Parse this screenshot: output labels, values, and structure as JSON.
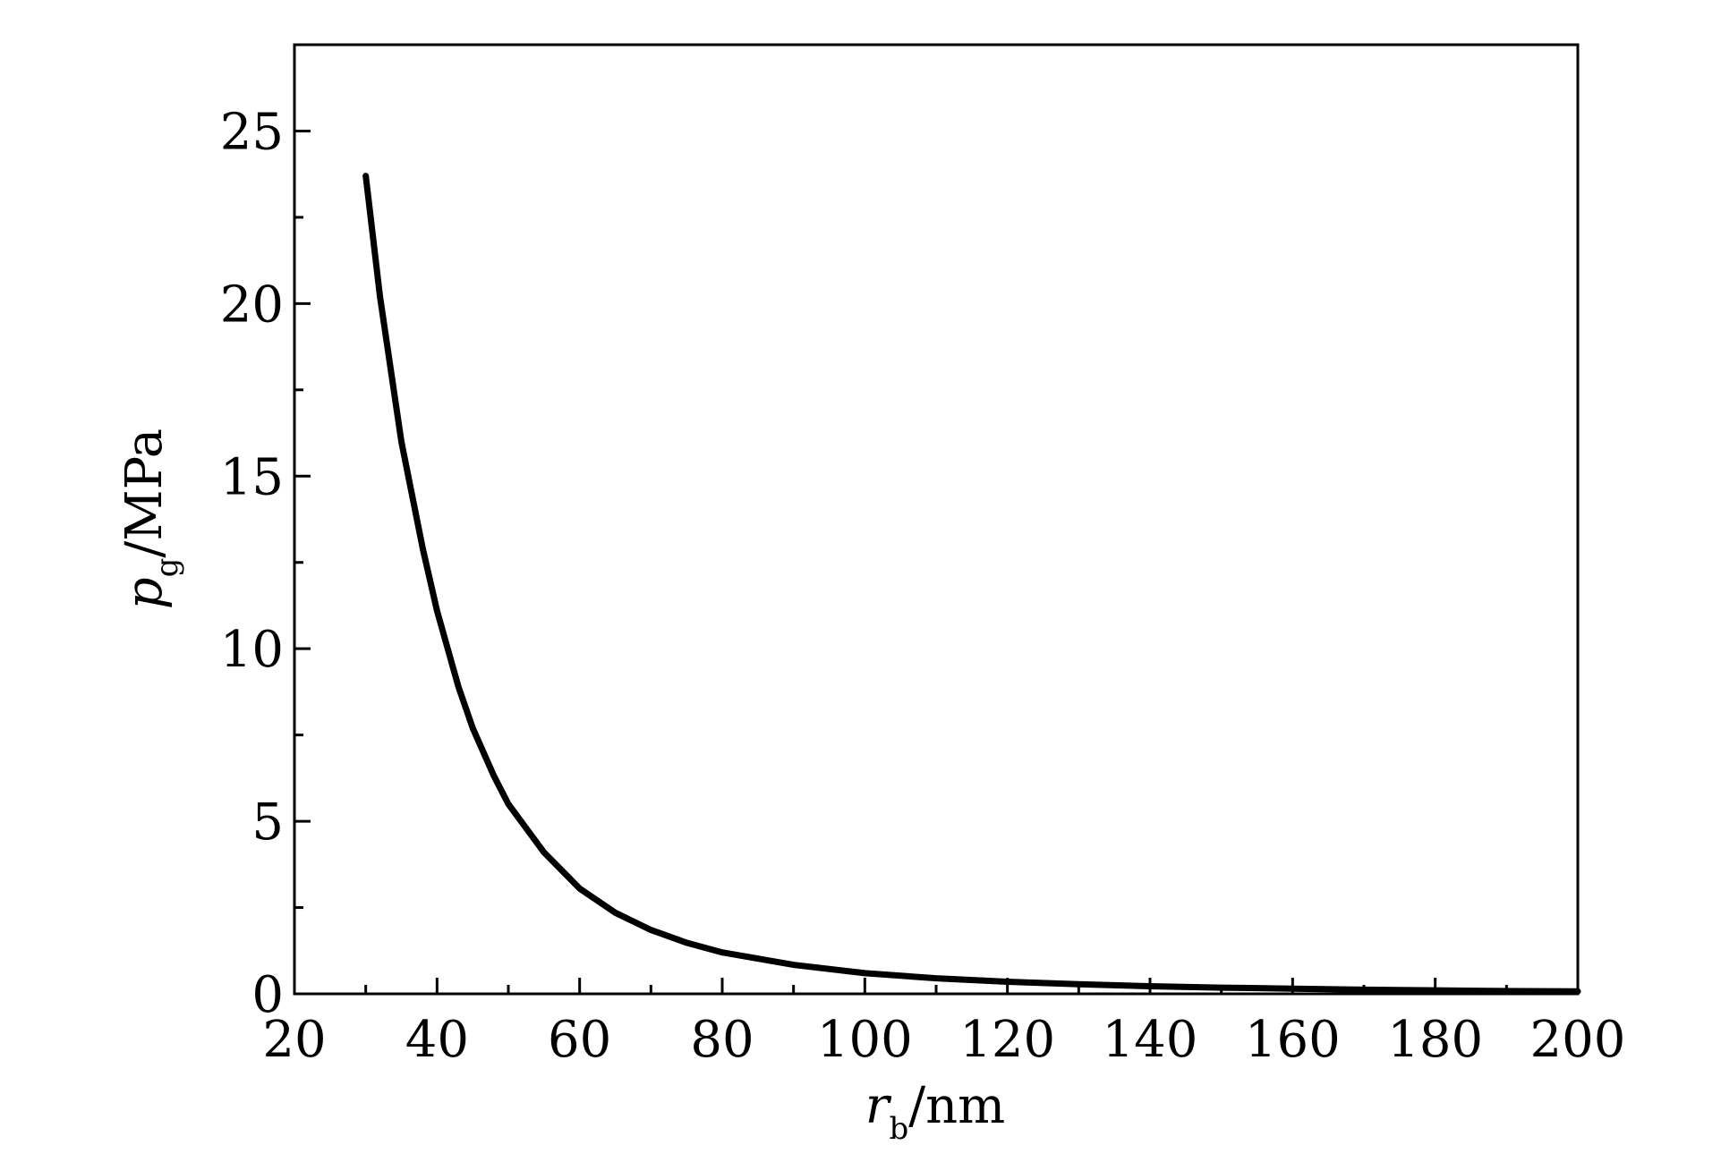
{
  "chart_data": {
    "type": "line",
    "title": "",
    "xlabel": {
      "symbol": "r",
      "subscript": "b",
      "unit": "/nm"
    },
    "ylabel": {
      "symbol": "p",
      "subscript": "g",
      "unit": "/MPa"
    },
    "xlim": [
      20,
      200
    ],
    "ylim": [
      0,
      27.5
    ],
    "xticks": [
      20,
      40,
      60,
      80,
      100,
      120,
      140,
      160,
      180,
      200
    ],
    "yticks": [
      0,
      5,
      10,
      15,
      20,
      25
    ],
    "grid": false,
    "legend": "none",
    "series": [
      {
        "color": "#000000",
        "x": [
          30,
          32,
          35,
          38,
          40,
          43,
          45,
          48,
          50,
          55,
          60,
          65,
          70,
          75,
          80,
          90,
          100,
          110,
          120,
          130,
          140,
          150,
          160,
          170,
          180,
          190,
          200
        ],
        "y": [
          23.7,
          20.2,
          16.0,
          12.9,
          11.1,
          8.9,
          7.7,
          6.3,
          5.5,
          4.1,
          3.05,
          2.35,
          1.85,
          1.48,
          1.2,
          0.84,
          0.6,
          0.45,
          0.35,
          0.28,
          0.22,
          0.18,
          0.15,
          0.12,
          0.1,
          0.08,
          0.07
        ]
      }
    ]
  }
}
